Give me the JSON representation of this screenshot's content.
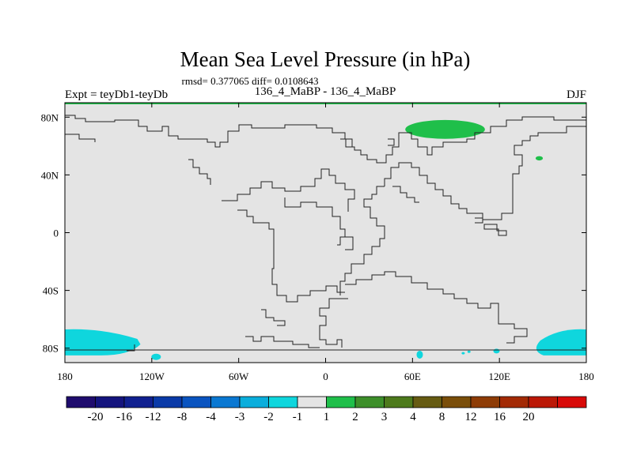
{
  "chart_data": {
    "type": "heatmap",
    "title": "Mean Sea Level Pressure (in hPa)",
    "stats_line": "rmsd= 0.377065 diff= 0.0108643",
    "subtitle_left": "Expt = teyDb1-teyDb",
    "subtitle_center": "136_4_MaBP - 136_4_MaBP",
    "subtitle_right": "DJF",
    "x_axis": {
      "range": [
        -180,
        180
      ],
      "ticks": [
        {
          "value": -180,
          "label": "180"
        },
        {
          "value": -120,
          "label": "120W"
        },
        {
          "value": -60,
          "label": "60W"
        },
        {
          "value": 0,
          "label": "0"
        },
        {
          "value": 60,
          "label": "60E"
        },
        {
          "value": 120,
          "label": "120E"
        },
        {
          "value": 180,
          "label": "180"
        }
      ]
    },
    "y_axis": {
      "range": [
        -90,
        90
      ],
      "ticks": [
        {
          "value": 80,
          "label": "80N"
        },
        {
          "value": 40,
          "label": "40N"
        },
        {
          "value": 0,
          "label": "0"
        },
        {
          "value": -40,
          "label": "40S"
        },
        {
          "value": -80,
          "label": "80S"
        }
      ]
    },
    "background_level": "-1 to 1",
    "regions": [
      {
        "name": "arctic-high-anomaly",
        "level": "1 to 2",
        "color": "#1fbf4a",
        "lon": [
          55,
          110
        ],
        "lat": [
          65,
          78
        ]
      },
      {
        "name": "pacific-small-anomaly",
        "level": "1 to 2",
        "color": "#1fbf4a",
        "lon": [
          145,
          150
        ],
        "lat": [
          50,
          53
        ]
      },
      {
        "name": "southern-west-low",
        "level": "-2 to -1",
        "color": "#0fd6dd",
        "lon": [
          -180,
          -130
        ],
        "lat": [
          -85,
          -67
        ]
      },
      {
        "name": "southern-east-low",
        "level": "-2 to -1",
        "color": "#0fd6dd",
        "lon": [
          145,
          180
        ],
        "lat": [
          -85,
          -67
        ]
      }
    ],
    "colorbar": {
      "colors": [
        "#1f0c6e",
        "#14147e",
        "#102090",
        "#0a3aa8",
        "#0a54c0",
        "#0a78d2",
        "#0aaedc",
        "#0fd6dd",
        "#e4e4e4",
        "#1fbf4a",
        "#3d8f2a",
        "#4d7a1c",
        "#665b12",
        "#7a4e0a",
        "#8e3c06",
        "#a32a05",
        "#bb1806",
        "#d80a08"
      ],
      "labels": [
        "-20",
        "-16",
        "-12",
        "-8",
        "-4",
        "-3",
        "-2",
        "-1",
        "1",
        "2",
        "3",
        "4",
        "8",
        "12",
        "16",
        "20"
      ]
    }
  }
}
